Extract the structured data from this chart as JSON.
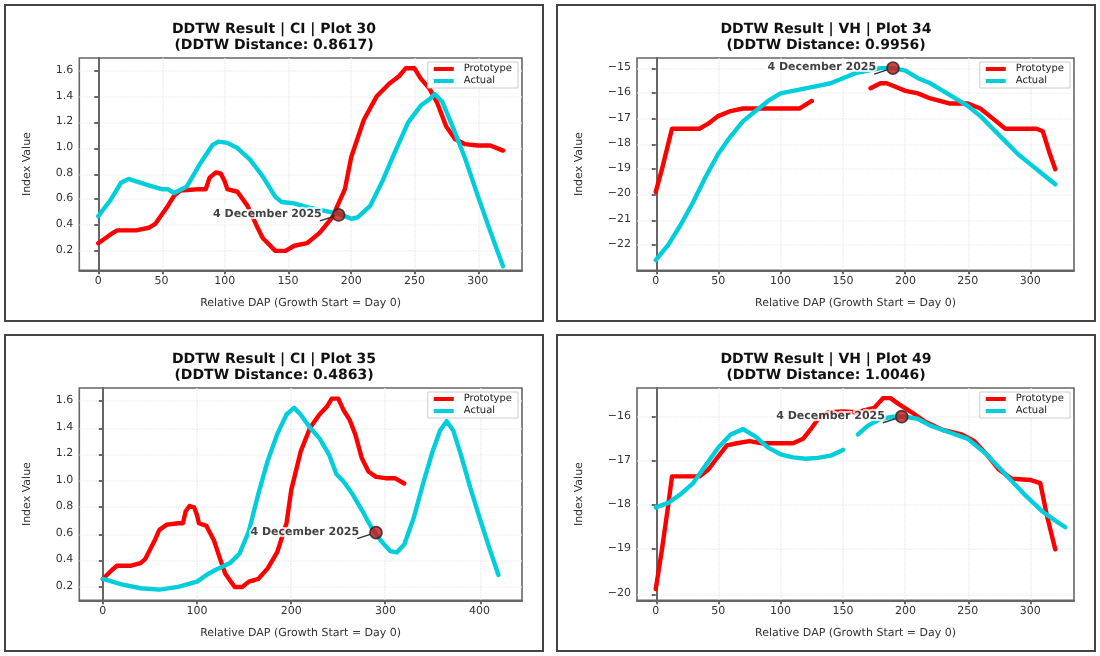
{
  "chart_data": [
    {
      "type": "line",
      "title": "DDTW Result | CI | Plot 30",
      "subtitle": "(DDTW Distance: 0.8617)",
      "xlabel": "Relative DAP (Growth Start = Day 0)",
      "ylabel": "Index Value",
      "xlim": [
        -15,
        335
      ],
      "xticks": [
        0,
        50,
        100,
        150,
        200,
        250,
        300
      ],
      "ylim": [
        0.05,
        1.7
      ],
      "yticks": [
        0.2,
        0.4,
        0.6,
        0.8,
        {
          "value": 1,
          "label": "1.0"
        },
        1.2,
        1.4,
        1.6
      ],
      "grid": true,
      "legend": "top right",
      "marker": "none",
      "line_style": "solid",
      "annotations": [
        {
          "text": "4 December 2025",
          "x": 190,
          "y": 0.48
        }
      ],
      "series": [
        {
          "name": "Prototype",
          "color": "#ff0000",
          "x": [
            0,
            10,
            15,
            30,
            40,
            45,
            55,
            60,
            65,
            80,
            85,
            88,
            93,
            97,
            100,
            102,
            110,
            118,
            125,
            130,
            140,
            148,
            155,
            165,
            175,
            185,
            195,
            200,
            210,
            220,
            230,
            238,
            243,
            250,
            255,
            262,
            268,
            275,
            282,
            290,
            300,
            310,
            320
          ],
          "values": [
            0.26,
            0.33,
            0.36,
            0.36,
            0.38,
            0.41,
            0.55,
            0.63,
            0.67,
            0.68,
            0.68,
            0.77,
            0.81,
            0.8,
            0.74,
            0.68,
            0.66,
            0.55,
            0.4,
            0.3,
            0.2,
            0.2,
            0.24,
            0.26,
            0.34,
            0.46,
            0.68,
            0.93,
            1.22,
            1.4,
            1.5,
            1.56,
            1.62,
            1.62,
            1.54,
            1.46,
            1.35,
            1.17,
            1.07,
            1.03,
            1.02,
            1.02,
            0.98
          ]
        },
        {
          "name": "Actual",
          "color": "#00cedb",
          "x": [
            0,
            10,
            18,
            24,
            30,
            40,
            50,
            55,
            60,
            70,
            80,
            90,
            95,
            102,
            110,
            120,
            130,
            140,
            145,
            155,
            165,
            180,
            190,
            200,
            205,
            215,
            225,
            235,
            245,
            255,
            262,
            266,
            272,
            280,
            290,
            300,
            310,
            320
          ],
          "values": [
            0.47,
            0.6,
            0.73,
            0.76,
            0.74,
            0.71,
            0.68,
            0.68,
            0.65,
            0.7,
            0.87,
            1.02,
            1.05,
            1.04,
            1.0,
            0.91,
            0.78,
            0.62,
            0.58,
            0.57,
            0.54,
            0.51,
            0.49,
            0.45,
            0.46,
            0.55,
            0.75,
            0.98,
            1.2,
            1.33,
            1.38,
            1.42,
            1.36,
            1.17,
            0.92,
            0.63,
            0.35,
            0.08
          ]
        }
      ]
    },
    {
      "type": "line",
      "title": "DDTW Result | VH | Plot 34",
      "subtitle": "(DDTW Distance: 0.9956)",
      "xlabel": "Relative DAP (Growth Start = Day 0)",
      "ylabel": "Index Value",
      "xlim": [
        -15,
        335
      ],
      "xticks": [
        0,
        50,
        100,
        150,
        200,
        250,
        300
      ],
      "ylim": [
        -23.0,
        -14.6
      ],
      "yticks": [
        -22,
        -21,
        -20,
        -19,
        -18,
        -17,
        -16,
        -15
      ],
      "grid": true,
      "legend": "top right",
      "marker": "none",
      "line_style": "solid",
      "annotations": [
        {
          "text": "4 December 2025",
          "x": 190,
          "y": -15.0
        }
      ],
      "series": [
        {
          "name": "Prototype",
          "color": "#ff0000",
          "x": [
            0,
            5,
            10,
            13,
            20,
            35,
            42,
            50,
            60,
            70,
            90,
            110,
            115,
            125,
            150,
            172,
            180,
            185,
            190,
            200,
            210,
            220,
            235,
            250,
            260,
            270,
            280,
            290,
            305,
            310,
            315,
            320
          ],
          "values": [
            -19.9,
            -19.0,
            -18.0,
            -17.4,
            -17.4,
            -17.4,
            -17.2,
            -16.9,
            -16.7,
            -16.6,
            -16.6,
            -16.6,
            -16.6,
            -16.3,
            null,
            -15.8,
            -15.6,
            -15.6,
            -15.7,
            -15.9,
            -16.0,
            -16.2,
            -16.4,
            -16.4,
            -16.6,
            -17.0,
            -17.4,
            -17.4,
            -17.4,
            -17.5,
            -18.3,
            -19.0
          ]
        },
        {
          "name": "Actual",
          "color": "#00cedb",
          "x": [
            0,
            10,
            20,
            30,
            40,
            50,
            60,
            70,
            80,
            90,
            100,
            110,
            120,
            130,
            140,
            150,
            160,
            170,
            180,
            190,
            200,
            210,
            220,
            230,
            240,
            250,
            260,
            270,
            280,
            290,
            300,
            310,
            320
          ],
          "values": [
            -22.6,
            -22.0,
            -21.2,
            -20.3,
            -19.3,
            -18.4,
            -17.7,
            -17.1,
            -16.7,
            -16.3,
            -16.0,
            -15.9,
            -15.8,
            -15.7,
            -15.6,
            -15.4,
            -15.2,
            -15.1,
            -15.0,
            -15.0,
            -15.1,
            -15.4,
            -15.6,
            -15.9,
            -16.2,
            -16.5,
            -16.9,
            -17.4,
            -17.9,
            -18.4,
            -18.8,
            -19.2,
            -19.6
          ]
        }
      ]
    },
    {
      "type": "line",
      "title": "DDTW Result | CI | Plot 35",
      "subtitle": "(DDTW Distance: 0.4863)",
      "xlabel": "Relative DAP (Growth Start = Day 0)",
      "ylabel": "Index Value",
      "xlim": [
        -25,
        445
      ],
      "xticks": [
        0,
        100,
        200,
        300,
        400
      ],
      "ylim": [
        0.1,
        1.7
      ],
      "yticks": [
        0.2,
        0.4,
        0.6,
        0.8,
        {
          "value": 1,
          "label": "1.0"
        },
        1.2,
        1.4,
        1.6
      ],
      "grid": true,
      "legend": "top right",
      "marker": "none",
      "line_style": "solid",
      "annotations": [
        {
          "text": "4 December 2025",
          "x": 290,
          "y": 0.61
        }
      ],
      "series": [
        {
          "name": "Prototype",
          "color": "#ff0000",
          "x": [
            0,
            10,
            15,
            30,
            40,
            45,
            55,
            60,
            68,
            80,
            85,
            88,
            92,
            97,
            100,
            102,
            110,
            118,
            125,
            130,
            140,
            148,
            155,
            165,
            175,
            185,
            195,
            200,
            210,
            220,
            230,
            238,
            243,
            250,
            255,
            262,
            268,
            275,
            282,
            290,
            300,
            310,
            320
          ],
          "values": [
            0.26,
            0.33,
            0.36,
            0.36,
            0.38,
            0.41,
            0.55,
            0.63,
            0.67,
            0.68,
            0.68,
            0.77,
            0.81,
            0.8,
            0.74,
            0.68,
            0.66,
            0.55,
            0.4,
            0.3,
            0.2,
            0.2,
            0.24,
            0.26,
            0.34,
            0.46,
            0.68,
            0.93,
            1.22,
            1.4,
            1.5,
            1.56,
            1.62,
            1.62,
            1.54,
            1.46,
            1.35,
            1.17,
            1.07,
            1.03,
            1.02,
            1.02,
            0.98
          ]
        },
        {
          "name": "Actual",
          "color": "#00cedb",
          "x": [
            0,
            20,
            40,
            60,
            80,
            100,
            110,
            120,
            135,
            145,
            155,
            165,
            175,
            185,
            195,
            203,
            210,
            220,
            230,
            240,
            248,
            255,
            265,
            275,
            285,
            295,
            305,
            312,
            320,
            330,
            340,
            350,
            358,
            365,
            372,
            380,
            390,
            400,
            410,
            420
          ],
          "values": [
            0.26,
            0.22,
            0.19,
            0.18,
            0.2,
            0.24,
            0.29,
            0.33,
            0.38,
            0.45,
            0.62,
            0.9,
            1.15,
            1.35,
            1.5,
            1.55,
            1.5,
            1.4,
            1.32,
            1.2,
            1.05,
            1.0,
            0.9,
            0.78,
            0.65,
            0.55,
            0.47,
            0.46,
            0.52,
            0.72,
            0.98,
            1.22,
            1.38,
            1.45,
            1.38,
            1.2,
            0.95,
            0.72,
            0.5,
            0.29
          ]
        }
      ]
    },
    {
      "type": "line",
      "title": "DDTW Result | VH | Plot 49",
      "subtitle": "(DDTW Distance: 1.0046)",
      "xlabel": "Relative DAP (Growth Start = Day 0)",
      "ylabel": "Index Value",
      "xlim": [
        -15,
        335
      ],
      "xticks": [
        0,
        50,
        100,
        150,
        200,
        250,
        300
      ],
      "ylim": [
        -20.15,
        -15.35
      ],
      "yticks": [
        -20,
        -19,
        -18,
        -17,
        -16
      ],
      "grid": true,
      "legend": "top right",
      "marker": "none",
      "line_style": "solid",
      "annotations": [
        {
          "text": "4 December 2025",
          "x": 197,
          "y": -16.0
        }
      ],
      "series": [
        {
          "name": "Prototype",
          "color": "#ff0000",
          "x": [
            0,
            5,
            10,
            13,
            20,
            35,
            42,
            50,
            57,
            65,
            75,
            85,
            100,
            110,
            118,
            125,
            130,
            138,
            150,
            160,
            175,
            182,
            188,
            195,
            205,
            215,
            230,
            245,
            255,
            265,
            275,
            285,
            300,
            308,
            313,
            320
          ],
          "values": [
            -19.9,
            -19.0,
            -18.0,
            -17.35,
            -17.35,
            -17.35,
            -17.2,
            -16.9,
            -16.65,
            -16.6,
            -16.55,
            -16.6,
            -16.6,
            -16.6,
            -16.5,
            -16.25,
            -16.05,
            -15.9,
            -15.88,
            -15.9,
            -15.8,
            -15.58,
            -15.58,
            -15.72,
            -15.9,
            -16.1,
            -16.3,
            -16.4,
            -16.55,
            -16.85,
            -17.2,
            -17.4,
            -17.43,
            -17.5,
            -18.2,
            -19.0
          ]
        },
        {
          "name": "Actual",
          "color": "#00cedb",
          "x": [
            0,
            10,
            20,
            30,
            40,
            50,
            60,
            70,
            80,
            90,
            100,
            110,
            120,
            130,
            140,
            150,
            156,
            162,
            170,
            180,
            190,
            200,
            210,
            220,
            235,
            250,
            265,
            280,
            295,
            310,
            320,
            328
          ],
          "values": [
            -18.05,
            -17.95,
            -17.75,
            -17.5,
            -17.1,
            -16.7,
            -16.4,
            -16.28,
            -16.45,
            -16.7,
            -16.85,
            -16.92,
            -16.95,
            -16.93,
            -16.88,
            -16.75,
            null,
            -16.4,
            -16.2,
            -16.05,
            -16.0,
            -16.0,
            -16.05,
            -16.2,
            -16.35,
            -16.5,
            -16.85,
            -17.3,
            -17.75,
            -18.15,
            -18.35,
            -18.5
          ]
        }
      ]
    }
  ]
}
